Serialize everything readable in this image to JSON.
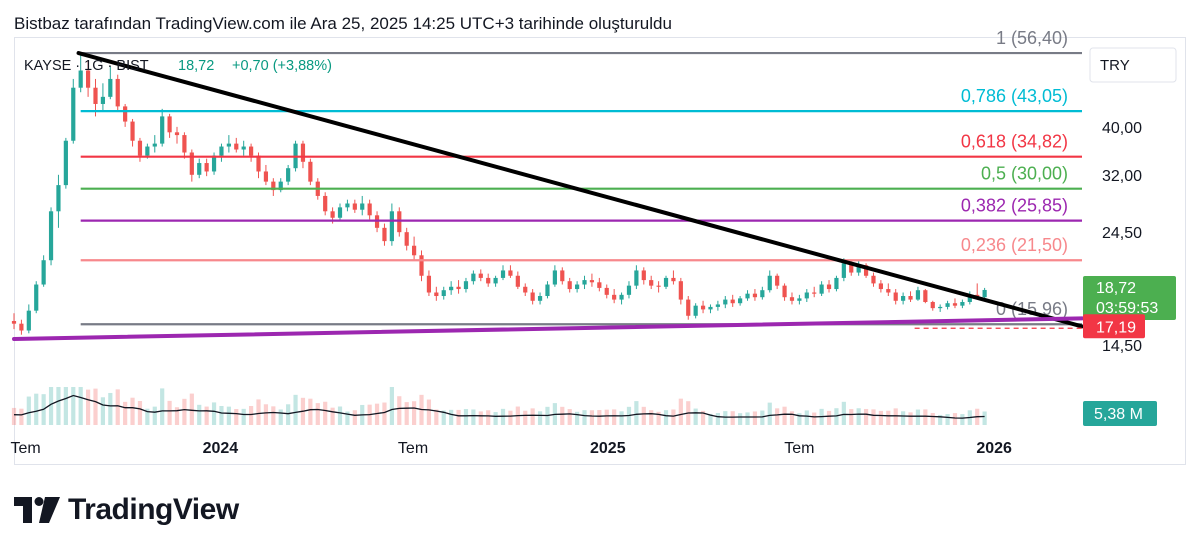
{
  "header": {
    "caption": "Bistbaz tarafından TradingView.com ile Ara 25, 2025 14:25 UTC+3 tarihinde oluşturuldu"
  },
  "symbol_info": {
    "name": "KAYSE · 1G · BIST",
    "price": "18,72",
    "change": "+0,70 (+3,88%)"
  },
  "currency_button": "TRY",
  "footer": {
    "brand": "TradingView"
  },
  "colors": {
    "up": "#26a69a",
    "down": "#ef5350",
    "text_green": "#089981",
    "level_1": "#787b86",
    "level_0786": "#00bcd4",
    "level_0618": "#f23645",
    "level_05": "#4caf50",
    "level_0382": "#9c27b0",
    "level_0236": "#f7888c",
    "level_0": "#787b86",
    "trendline": "#000000",
    "support": "#9c27b0"
  },
  "chart_data": {
    "type": "candlestick",
    "symbol": "KAYSE",
    "interval": "1G",
    "exchange": "BIST",
    "currency": "TRY",
    "x_tick_labels": [
      "Tem",
      "2024",
      "Tem",
      "2025",
      "Tem",
      "2026"
    ],
    "x_ticks": [
      "2023-07-01",
      "2024-01-01",
      "2024-07-01",
      "2025-01-01",
      "2025-07-01",
      "2026-01-01"
    ],
    "x_range": [
      "2023-06-20",
      "2026-03-25"
    ],
    "y_tick_labels": [
      "40,00",
      "32,00",
      "24,50",
      "14,50"
    ],
    "y_ticks": [
      40.0,
      32.0,
      24.5,
      14.5
    ],
    "y_scale": "log",
    "ylim": [
      12.6,
      60.5
    ],
    "fib_levels": [
      {
        "label": "1 (56,40)",
        "ratio": 1,
        "price": 56.4,
        "color_key": "level_1"
      },
      {
        "label": "0,786 (43,05)",
        "ratio": 0.786,
        "price": 43.05,
        "color_key": "level_0786"
      },
      {
        "label": "0,618 (34,82)",
        "ratio": 0.618,
        "price": 34.82,
        "color_key": "level_0618"
      },
      {
        "label": "0,5 (30,00)",
        "ratio": 0.5,
        "price": 30.0,
        "color_key": "level_05"
      },
      {
        "label": "0,382 (25,85)",
        "ratio": 0.382,
        "price": 25.85,
        "color_key": "level_0382"
      },
      {
        "label": "0,236 (21,50)",
        "ratio": 0.236,
        "price": 21.5,
        "color_key": "level_0236"
      },
      {
        "label": "0 (15,96)",
        "ratio": 0,
        "price": 15.96,
        "color_key": "level_0"
      }
    ],
    "price_labels": [
      {
        "text": "18,72",
        "subtext": "03:59:53",
        "value": 18.72,
        "color": "#4caf50"
      },
      {
        "text": "17,19",
        "value": 17.19,
        "color": "#f23645"
      },
      {
        "text": "5,38 M",
        "value_label": "volume",
        "color": "#26a69a"
      }
    ],
    "trendline": {
      "start": {
        "x": "2023-08-20",
        "y": 56.4
      },
      "end": {
        "x": "2026-03-25",
        "y": 15.8
      }
    },
    "support_line": {
      "start": {
        "x": "2023-06-20",
        "y": 14.9
      },
      "end": {
        "x": "2026-03-25",
        "y": 16.4
      }
    },
    "candles": [
      [
        "2023-06-20",
        16.2,
        16.8,
        15.6,
        16.0
      ],
      [
        "2023-06-27",
        16.0,
        16.3,
        15.2,
        15.5
      ],
      [
        "2023-07-04",
        15.5,
        17.5,
        15.3,
        17.0
      ],
      [
        "2023-07-11",
        17.0,
        19.5,
        16.8,
        19.2
      ],
      [
        "2023-07-18",
        19.2,
        22.0,
        19.0,
        21.5
      ],
      [
        "2023-07-25",
        21.5,
        27.5,
        21.0,
        27.0
      ],
      [
        "2023-08-01",
        27.0,
        32.0,
        25.0,
        30.5
      ],
      [
        "2023-08-08",
        30.5,
        38.0,
        30.0,
        37.5
      ],
      [
        "2023-08-15",
        37.5,
        50.0,
        37.0,
        48.0
      ],
      [
        "2023-08-22",
        48.0,
        56.4,
        47.0,
        52.0
      ],
      [
        "2023-08-29",
        52.0,
        54.5,
        46.0,
        48.0
      ],
      [
        "2023-09-05",
        48.0,
        50.0,
        42.0,
        44.5
      ],
      [
        "2023-09-12",
        44.5,
        49.0,
        43.0,
        46.0
      ],
      [
        "2023-09-19",
        46.0,
        53.0,
        45.5,
        50.0
      ],
      [
        "2023-09-26",
        50.0,
        51.0,
        43.0,
        44.0
      ],
      [
        "2023-10-03",
        44.0,
        44.5,
        40.0,
        41.0
      ],
      [
        "2023-10-10",
        41.0,
        41.5,
        36.5,
        37.5
      ],
      [
        "2023-10-17",
        37.5,
        38.0,
        34.0,
        35.0
      ],
      [
        "2023-10-24",
        35.0,
        37.0,
        34.5,
        36.5
      ],
      [
        "2023-10-31",
        36.5,
        38.5,
        35.5,
        37.0
      ],
      [
        "2023-11-07",
        37.0,
        43.5,
        36.5,
        42.0
      ],
      [
        "2023-11-14",
        42.0,
        42.5,
        38.0,
        39.0
      ],
      [
        "2023-11-21",
        39.0,
        40.0,
        37.0,
        38.5
      ],
      [
        "2023-11-28",
        38.5,
        39.0,
        34.5,
        35.5
      ],
      [
        "2023-12-05",
        35.5,
        36.0,
        31.0,
        32.0
      ],
      [
        "2023-12-12",
        32.0,
        34.5,
        31.5,
        33.8
      ],
      [
        "2023-12-19",
        33.8,
        34.5,
        31.8,
        32.5
      ],
      [
        "2023-12-26",
        32.5,
        35.5,
        32.0,
        35.0
      ],
      [
        "2024-01-02",
        35.0,
        37.0,
        34.0,
        36.5
      ],
      [
        "2024-01-09",
        36.5,
        38.5,
        35.5,
        37.0
      ],
      [
        "2024-01-16",
        37.0,
        38.0,
        35.5,
        36.0
      ],
      [
        "2024-01-23",
        36.0,
        37.5,
        35.0,
        36.5
      ],
      [
        "2024-01-30",
        36.5,
        37.0,
        34.0,
        35.0
      ],
      [
        "2024-02-06",
        35.0,
        35.5,
        31.5,
        32.5
      ],
      [
        "2024-02-13",
        32.5,
        33.5,
        30.5,
        31.0
      ],
      [
        "2024-02-20",
        31.0,
        31.5,
        29.0,
        29.8
      ],
      [
        "2024-02-27",
        29.8,
        31.5,
        29.5,
        31.0
      ],
      [
        "2024-03-05",
        31.0,
        33.5,
        30.5,
        33.0
      ],
      [
        "2024-03-12",
        33.0,
        37.5,
        32.5,
        37.0
      ],
      [
        "2024-03-19",
        37.0,
        37.5,
        33.0,
        34.0
      ],
      [
        "2024-03-26",
        34.0,
        34.5,
        30.5,
        31.0
      ],
      [
        "2024-04-02",
        31.0,
        31.5,
        28.5,
        29.0
      ],
      [
        "2024-04-09",
        29.0,
        29.5,
        26.5,
        27.0
      ],
      [
        "2024-04-16",
        27.0,
        27.5,
        25.5,
        26.2
      ],
      [
        "2024-04-23",
        26.2,
        28.0,
        25.8,
        27.5
      ],
      [
        "2024-04-30",
        27.5,
        28.5,
        27.0,
        28.0
      ],
      [
        "2024-05-07",
        28.0,
        28.5,
        26.8,
        27.2
      ],
      [
        "2024-05-14",
        27.2,
        29.0,
        26.5,
        28.0
      ],
      [
        "2024-05-21",
        28.0,
        28.5,
        26.0,
        26.5
      ],
      [
        "2024-05-28",
        26.5,
        27.0,
        24.5,
        25.0
      ],
      [
        "2024-06-04",
        25.0,
        25.5,
        23.0,
        23.5
      ],
      [
        "2024-06-11",
        23.5,
        28.0,
        23.0,
        27.0
      ],
      [
        "2024-06-18",
        27.0,
        27.5,
        24.0,
        24.5
      ],
      [
        "2024-06-25",
        24.5,
        25.0,
        22.5,
        23.0
      ],
      [
        "2024-07-02",
        23.0,
        24.0,
        21.5,
        22.0
      ],
      [
        "2024-07-09",
        22.0,
        22.5,
        19.5,
        20.0
      ],
      [
        "2024-07-16",
        20.0,
        20.5,
        18.2,
        18.5
      ],
      [
        "2024-07-23",
        18.5,
        19.0,
        17.8,
        18.2
      ],
      [
        "2024-07-30",
        18.2,
        19.0,
        17.9,
        18.7
      ],
      [
        "2024-08-06",
        18.7,
        19.5,
        18.3,
        19.0
      ],
      [
        "2024-08-13",
        19.0,
        19.6,
        18.4,
        18.8
      ],
      [
        "2024-08-20",
        18.8,
        19.8,
        18.5,
        19.5
      ],
      [
        "2024-08-27",
        19.5,
        20.5,
        19.2,
        20.2
      ],
      [
        "2024-09-03",
        20.2,
        20.6,
        19.5,
        19.8
      ],
      [
        "2024-09-10",
        19.8,
        20.2,
        19.0,
        19.3
      ],
      [
        "2024-09-17",
        19.3,
        20.0,
        19.0,
        19.8
      ],
      [
        "2024-09-24",
        19.8,
        21.0,
        19.6,
        20.5
      ],
      [
        "2024-10-01",
        20.5,
        21.0,
        19.8,
        20.0
      ],
      [
        "2024-10-08",
        20.0,
        20.4,
        18.8,
        19.0
      ],
      [
        "2024-10-15",
        19.0,
        19.3,
        18.2,
        18.5
      ],
      [
        "2024-10-22",
        18.5,
        18.8,
        17.5,
        17.8
      ],
      [
        "2024-10-29",
        17.8,
        18.5,
        17.5,
        18.2
      ],
      [
        "2024-11-05",
        18.2,
        19.5,
        18.0,
        19.2
      ],
      [
        "2024-11-12",
        19.2,
        21.0,
        19.0,
        20.5
      ],
      [
        "2024-11-19",
        20.5,
        20.8,
        19.2,
        19.5
      ],
      [
        "2024-11-26",
        19.5,
        19.8,
        18.5,
        18.8
      ],
      [
        "2024-12-03",
        18.8,
        19.5,
        18.5,
        19.2
      ],
      [
        "2024-12-10",
        19.2,
        20.0,
        18.8,
        19.6
      ],
      [
        "2024-12-17",
        19.6,
        20.2,
        19.0,
        19.4
      ],
      [
        "2024-12-24",
        19.4,
        19.8,
        18.6,
        18.9
      ],
      [
        "2024-12-31",
        18.9,
        19.2,
        18.0,
        18.3
      ],
      [
        "2025-01-07",
        18.3,
        18.8,
        17.6,
        17.9
      ],
      [
        "2025-01-14",
        17.9,
        18.5,
        17.5,
        18.3
      ],
      [
        "2025-01-21",
        18.3,
        19.5,
        18.0,
        19.1
      ],
      [
        "2025-01-28",
        19.1,
        21.0,
        18.8,
        20.5
      ],
      [
        "2025-02-04",
        20.5,
        20.8,
        19.2,
        19.6
      ],
      [
        "2025-02-11",
        19.6,
        20.0,
        18.8,
        19.1
      ],
      [
        "2025-02-18",
        19.1,
        19.5,
        18.5,
        19.0
      ],
      [
        "2025-02-25",
        19.0,
        20.0,
        18.8,
        19.8
      ],
      [
        "2025-03-04",
        19.8,
        20.5,
        19.2,
        19.5
      ],
      [
        "2025-03-11",
        19.5,
        19.8,
        17.5,
        17.9
      ],
      [
        "2025-03-18",
        17.9,
        18.2,
        16.3,
        16.6
      ],
      [
        "2025-03-25",
        16.6,
        17.6,
        16.4,
        17.4
      ],
      [
        "2025-04-01",
        17.4,
        17.8,
        16.8,
        17.1
      ],
      [
        "2025-04-08",
        17.1,
        17.5,
        16.8,
        17.3
      ],
      [
        "2025-04-15",
        17.3,
        17.8,
        17.0,
        17.5
      ],
      [
        "2025-04-22",
        17.5,
        18.2,
        17.2,
        17.9
      ],
      [
        "2025-04-29",
        17.9,
        18.3,
        17.3,
        17.6
      ],
      [
        "2025-05-06",
        17.6,
        18.2,
        17.4,
        18.0
      ],
      [
        "2025-05-13",
        18.0,
        18.7,
        17.8,
        18.4
      ],
      [
        "2025-05-20",
        18.4,
        18.8,
        17.8,
        18.1
      ],
      [
        "2025-05-27",
        18.1,
        19.0,
        17.9,
        18.7
      ],
      [
        "2025-06-03",
        18.7,
        20.5,
        18.5,
        20.0
      ],
      [
        "2025-06-10",
        20.0,
        20.2,
        18.8,
        19.1
      ],
      [
        "2025-06-17",
        19.1,
        19.3,
        17.8,
        18.1
      ],
      [
        "2025-06-24",
        18.1,
        18.5,
        17.5,
        17.8
      ],
      [
        "2025-07-01",
        17.8,
        18.3,
        17.5,
        18.0
      ],
      [
        "2025-07-08",
        18.0,
        18.8,
        17.7,
        18.5
      ],
      [
        "2025-07-15",
        18.5,
        19.0,
        18.1,
        18.4
      ],
      [
        "2025-07-22",
        18.4,
        19.5,
        18.2,
        19.2
      ],
      [
        "2025-07-29",
        19.2,
        19.6,
        18.5,
        18.8
      ],
      [
        "2025-08-05",
        18.8,
        20.0,
        18.6,
        19.8
      ],
      [
        "2025-08-12",
        19.8,
        21.7,
        19.5,
        21.2
      ],
      [
        "2025-08-19",
        21.2,
        21.4,
        20.0,
        20.3
      ],
      [
        "2025-08-26",
        20.3,
        21.5,
        20.0,
        21.0
      ],
      [
        "2025-09-02",
        21.0,
        21.2,
        19.8,
        20.0
      ],
      [
        "2025-09-09",
        20.0,
        20.3,
        19.0,
        19.3
      ],
      [
        "2025-09-16",
        19.3,
        19.6,
        18.5,
        18.8
      ],
      [
        "2025-09-23",
        18.8,
        19.3,
        18.2,
        18.5
      ],
      [
        "2025-09-30",
        18.5,
        18.8,
        17.5,
        17.8
      ],
      [
        "2025-10-07",
        17.8,
        18.5,
        17.5,
        18.2
      ],
      [
        "2025-10-14",
        18.2,
        18.6,
        17.7,
        17.9
      ],
      [
        "2025-10-21",
        17.9,
        19.0,
        17.8,
        18.7
      ],
      [
        "2025-10-28",
        18.7,
        18.8,
        17.6,
        17.7
      ],
      [
        "2025-11-04",
        17.7,
        17.8,
        17.0,
        17.2
      ],
      [
        "2025-11-11",
        17.2,
        17.5,
        16.9,
        17.3
      ],
      [
        "2025-11-18",
        17.3,
        17.8,
        17.1,
        17.6
      ],
      [
        "2025-11-25",
        17.6,
        18.0,
        17.2,
        17.4
      ],
      [
        "2025-12-02",
        17.4,
        17.9,
        17.2,
        17.7
      ],
      [
        "2025-12-09",
        17.7,
        18.6,
        17.5,
        18.3
      ],
      [
        "2025-12-16",
        18.3,
        19.3,
        18.0,
        18.1
      ],
      [
        "2025-12-23",
        18.1,
        18.9,
        17.9,
        18.72
      ]
    ]
  }
}
